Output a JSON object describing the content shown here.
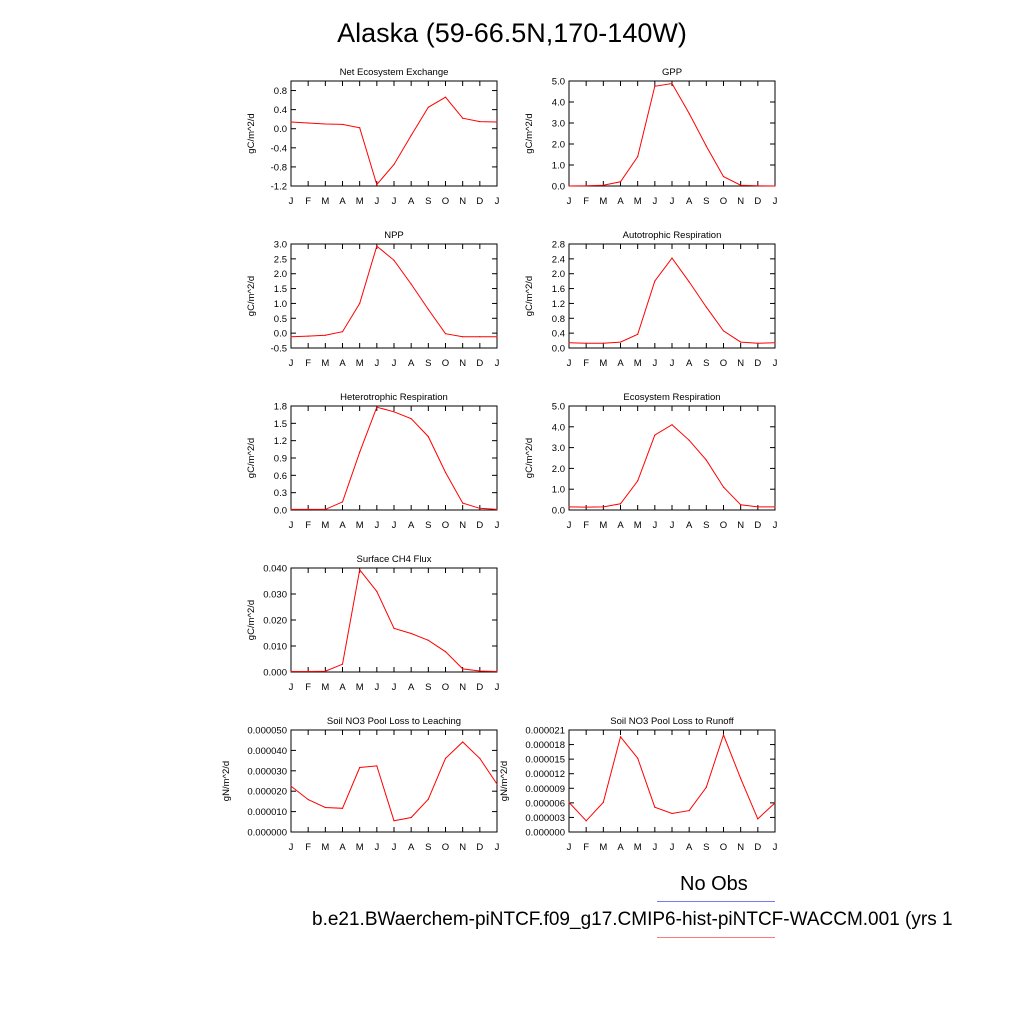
{
  "title": "Alaska (59-66.5N,170-140W)",
  "legend": {
    "obs_label": "No Obs",
    "obs_color": "#7777ff",
    "case_label": "b.e21.BWaerchem-piNTCF.f09_g17.CMIP6-hist-piNTCF-WACCM.001 (yrs 1",
    "case_color": "#ff7777"
  },
  "line_color": "#ff0000",
  "month_labels": [
    "J",
    "F",
    "M",
    "A",
    "M",
    "J",
    "J",
    "A",
    "S",
    "O",
    "N",
    "D",
    "J"
  ],
  "chart_data": [
    {
      "type": "line",
      "title": "Net Ecosystem Exchange",
      "ylabel": "gC/m^2/d",
      "ylim": [
        -1.2,
        1.0
      ],
      "yticks": [
        -1.2,
        -0.8,
        -0.4,
        0,
        0.4,
        0.8
      ],
      "ytick_labels": [
        "-1.2",
        "-0.8",
        "-0.4",
        "0.0",
        "0.4",
        "0.8"
      ],
      "values": [
        0.14,
        0.12,
        0.1,
        0.09,
        0.02,
        -1.17,
        -0.75,
        -0.14,
        0.45,
        0.66,
        0.22,
        0.15,
        0.14
      ]
    },
    {
      "type": "line",
      "title": "GPP",
      "ylabel": "gC/m^2/d",
      "ylim": [
        0,
        5.0
      ],
      "yticks": [
        0,
        1,
        2,
        3,
        4,
        5
      ],
      "ytick_labels": [
        "0.0",
        "1.0",
        "2.0",
        "3.0",
        "4.0",
        "5.0"
      ],
      "values": [
        0.0,
        0.01,
        0.04,
        0.2,
        1.4,
        4.75,
        4.88,
        3.45,
        1.9,
        0.45,
        0.04,
        0.01,
        0.0
      ]
    },
    {
      "type": "line",
      "title": "NPP",
      "ylabel": "gC/m^2/d",
      "ylim": [
        -0.5,
        3.0
      ],
      "yticks": [
        -0.5,
        0,
        0.5,
        1.0,
        1.5,
        2.0,
        2.5,
        3.0
      ],
      "ytick_labels": [
        "-0.5",
        "0.0",
        "0.5",
        "1.0",
        "1.5",
        "2.0",
        "2.5",
        "3.0"
      ],
      "values": [
        -0.12,
        -0.1,
        -0.07,
        0.05,
        1.0,
        2.93,
        2.45,
        1.65,
        0.8,
        -0.02,
        -0.12,
        -0.12,
        -0.12
      ]
    },
    {
      "type": "line",
      "title": "Autotrophic Respiration",
      "ylabel": "gC/m^2/d",
      "ylim": [
        0,
        2.8
      ],
      "yticks": [
        0,
        0.4,
        0.8,
        1.2,
        1.6,
        2.0,
        2.4,
        2.8
      ],
      "ytick_labels": [
        "0.0",
        "0.4",
        "0.8",
        "1.2",
        "1.6",
        "2.0",
        "2.4",
        "2.8"
      ],
      "values": [
        0.14,
        0.13,
        0.13,
        0.16,
        0.37,
        1.8,
        2.42,
        1.78,
        1.1,
        0.46,
        0.16,
        0.13,
        0.14
      ]
    },
    {
      "type": "line",
      "title": "Heterotrophic Respiration",
      "ylabel": "gC/m^2/d",
      "ylim": [
        0,
        1.8
      ],
      "yticks": [
        0,
        0.3,
        0.6,
        0.9,
        1.2,
        1.5,
        1.8
      ],
      "ytick_labels": [
        "0.0",
        "0.3",
        "0.6",
        "0.9",
        "1.2",
        "1.5",
        "1.8"
      ],
      "values": [
        0.01,
        0.01,
        0.01,
        0.14,
        1.0,
        1.78,
        1.7,
        1.58,
        1.27,
        0.65,
        0.12,
        0.03,
        0.01
      ]
    },
    {
      "type": "line",
      "title": "Ecosystem Respiration",
      "ylabel": "gC/m^2/d",
      "ylim": [
        0,
        5.0
      ],
      "yticks": [
        0,
        1,
        2,
        3,
        4,
        5
      ],
      "ytick_labels": [
        "0.0",
        "1.0",
        "2.0",
        "3.0",
        "4.0",
        "5.0"
      ],
      "values": [
        0.15,
        0.14,
        0.15,
        0.3,
        1.4,
        3.6,
        4.1,
        3.35,
        2.4,
        1.1,
        0.25,
        0.15,
        0.15
      ]
    },
    {
      "type": "line",
      "title": "Surface CH4 Flux",
      "ylabel": "gC/m^2/d",
      "ylim": [
        0,
        0.04
      ],
      "yticks": [
        0,
        0.01,
        0.02,
        0.03,
        0.04
      ],
      "ytick_labels": [
        "0.000",
        "0.010",
        "0.020",
        "0.030",
        "0.040"
      ],
      "values": [
        0.0002,
        0.0002,
        0.0003,
        0.003,
        0.0393,
        0.031,
        0.0168,
        0.0148,
        0.0122,
        0.0078,
        0.0012,
        0.0004,
        0.0002
      ]
    },
    {
      "type": "line",
      "title": "Soil NO3 Pool Loss to Leaching",
      "ylabel": "gN/m^2/d",
      "ylim": [
        0,
        5e-05
      ],
      "yticks": [
        0,
        1e-05,
        2e-05,
        3e-05,
        4e-05,
        5e-05
      ],
      "ytick_labels": [
        "0.000000",
        "0.000010",
        "0.000020",
        "0.000030",
        "0.000040",
        "0.000050"
      ],
      "values": [
        2.25e-05,
        1.59e-05,
        1.2e-05,
        1.16e-05,
        3.16e-05,
        3.24e-05,
        5.5e-06,
        7.1e-06,
        1.61e-05,
        3.61e-05,
        4.41e-05,
        3.61e-05,
        2.35e-05
      ]
    },
    {
      "type": "line",
      "title": "Soil NO3 Pool Loss to Runoff",
      "ylabel": "gN/m^2/d",
      "ylim": [
        0,
        2.1e-05
      ],
      "yticks": [
        0,
        3e-06,
        6e-06,
        9e-06,
        1.2e-05,
        1.5e-05,
        1.8e-05,
        2.1e-05
      ],
      "ytick_labels": [
        "0.000000",
        "0.000003",
        "0.000006",
        "0.000009",
        "0.000012",
        "0.000015",
        "0.000018",
        "0.000021"
      ],
      "values": [
        6.1e-06,
        2.3e-06,
        6.1e-06,
        1.96e-05,
        1.52e-05,
        5.1e-06,
        3.8e-06,
        4.4e-06,
        9.2e-06,
        2e-05,
        1.1e-05,
        2.7e-06,
        6e-06
      ]
    }
  ]
}
